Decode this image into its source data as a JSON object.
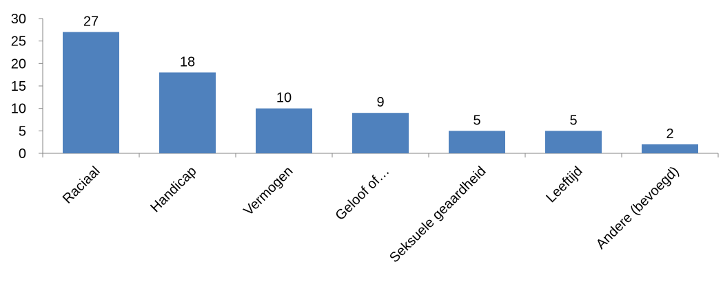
{
  "chart_data": {
    "type": "bar",
    "categories": [
      "Raciaal",
      "Handicap",
      "Vermogen",
      "Geloof of…",
      "Seksuele geaardheid",
      "Leeftijd",
      "Andere (bevoegd)"
    ],
    "values": [
      27,
      18,
      10,
      9,
      5,
      5,
      2
    ],
    "data_labels": [
      "27",
      "18",
      "10",
      "9",
      "5",
      "5",
      "2"
    ],
    "title": "",
    "xlabel": "",
    "ylabel": "",
    "ylim": [
      0,
      30
    ],
    "yticks": [
      0,
      5,
      10,
      15,
      20,
      25,
      30
    ],
    "grid": false,
    "legend": "none",
    "bar_color": "#4f81bd",
    "axis_color": "#868686"
  }
}
